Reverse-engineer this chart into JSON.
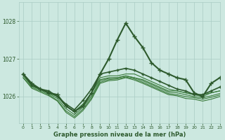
{
  "title": "Graphe pression niveau de la mer (hPa)",
  "bg_color": "#cce8e0",
  "grid_color": "#aaccC4",
  "line_color": "#2d5a2d",
  "xlim": [
    -0.5,
    23
  ],
  "ylim": [
    1025.3,
    1028.5
  ],
  "yticks": [
    1026,
    1027,
    1028
  ],
  "xticks": [
    0,
    1,
    2,
    3,
    4,
    5,
    6,
    7,
    8,
    9,
    10,
    11,
    12,
    13,
    14,
    15,
    16,
    17,
    18,
    19,
    20,
    21,
    22,
    23
  ],
  "figsize": [
    3.2,
    2.0
  ],
  "dpi": 100,
  "series": [
    {
      "x": [
        0,
        1,
        2,
        3,
        4,
        5,
        6,
        7,
        8,
        9,
        10,
        11,
        12,
        13,
        14,
        15,
        16,
        17,
        18,
        19,
        20,
        21,
        22,
        23
      ],
      "y": [
        1026.6,
        1026.35,
        1026.2,
        1026.1,
        1026.05,
        1025.75,
        1025.6,
        1025.75,
        1026.1,
        1026.6,
        1027.0,
        1027.5,
        1027.95,
        1027.6,
        1027.3,
        1026.9,
        1026.7,
        1026.6,
        1026.5,
        1026.45,
        1026.1,
        1026.0,
        1026.35,
        1026.5
      ],
      "color": "#2d5a2d",
      "lw": 1.5,
      "marker": "+",
      "ms": 4,
      "zorder": 5
    },
    {
      "x": [
        0,
        1,
        2,
        3,
        4,
        5,
        6,
        7,
        8,
        9,
        10,
        11,
        12,
        13,
        14,
        15,
        16,
        17,
        18,
        19,
        20,
        21,
        22,
        23
      ],
      "y": [
        1026.6,
        1026.3,
        1026.2,
        1026.15,
        1026.0,
        1025.8,
        1025.65,
        1025.9,
        1026.2,
        1026.6,
        1026.65,
        1026.7,
        1026.75,
        1026.7,
        1026.6,
        1026.5,
        1026.4,
        1026.3,
        1026.2,
        1026.15,
        1026.05,
        1026.05,
        1026.15,
        1026.25
      ],
      "color": "#2d5a2d",
      "lw": 1.2,
      "marker": "+",
      "ms": 3,
      "zorder": 4
    },
    {
      "x": [
        0,
        1,
        2,
        3,
        4,
        5,
        6,
        7,
        8,
        9,
        10,
        11,
        12,
        13,
        14,
        15,
        16,
        17,
        18,
        19,
        20,
        21,
        22,
        23
      ],
      "y": [
        1026.6,
        1026.3,
        1026.2,
        1026.1,
        1026.0,
        1025.75,
        1025.6,
        1025.8,
        1026.1,
        1026.45,
        1026.5,
        1026.5,
        1026.55,
        1026.5,
        1026.45,
        1026.35,
        1026.25,
        1026.15,
        1026.15,
        1026.1,
        1026.05,
        1026.0,
        1026.1,
        1026.15
      ],
      "color": "#3a7a3a",
      "lw": 0.8,
      "marker": null,
      "ms": 0,
      "zorder": 3
    },
    {
      "x": [
        0,
        1,
        2,
        3,
        4,
        5,
        6,
        7,
        8,
        9,
        10,
        11,
        12,
        13,
        14,
        15,
        16,
        17,
        18,
        19,
        20,
        21,
        22,
        23
      ],
      "y": [
        1026.6,
        1026.3,
        1026.2,
        1026.1,
        1026.0,
        1025.75,
        1025.6,
        1025.8,
        1026.1,
        1026.5,
        1026.55,
        1026.55,
        1026.6,
        1026.6,
        1026.5,
        1026.4,
        1026.3,
        1026.2,
        1026.15,
        1026.1,
        1026.05,
        1026.05,
        1026.1,
        1026.15
      ],
      "color": "#3a7a3a",
      "lw": 0.8,
      "marker": null,
      "ms": 0,
      "zorder": 3
    },
    {
      "x": [
        0,
        1,
        2,
        3,
        4,
        5,
        6,
        7,
        8,
        9,
        10,
        11,
        12,
        13,
        14,
        15,
        16,
        17,
        18,
        19,
        20,
        21,
        22,
        23
      ],
      "y": [
        1026.55,
        1026.28,
        1026.18,
        1026.08,
        1025.95,
        1025.68,
        1025.52,
        1025.72,
        1026.02,
        1026.42,
        1026.48,
        1026.5,
        1026.55,
        1026.5,
        1026.42,
        1026.32,
        1026.22,
        1026.12,
        1026.1,
        1026.05,
        1026.0,
        1025.97,
        1026.02,
        1026.08
      ],
      "color": "#3a7a3a",
      "lw": 0.8,
      "marker": null,
      "ms": 0,
      "zorder": 3
    },
    {
      "x": [
        0,
        1,
        2,
        3,
        4,
        5,
        6,
        7,
        8,
        9,
        10,
        11,
        12,
        13,
        14,
        15,
        16,
        17,
        18,
        19,
        20,
        21,
        22,
        23
      ],
      "y": [
        1026.5,
        1026.25,
        1026.15,
        1026.05,
        1025.9,
        1025.62,
        1025.47,
        1025.67,
        1025.97,
        1026.38,
        1026.45,
        1026.47,
        1026.52,
        1026.47,
        1026.38,
        1026.28,
        1026.18,
        1026.08,
        1026.05,
        1026.0,
        1025.97,
        1025.93,
        1025.98,
        1026.04
      ],
      "color": "#3a7a3a",
      "lw": 0.8,
      "marker": null,
      "ms": 0,
      "zorder": 3
    },
    {
      "x": [
        0,
        1,
        2,
        3,
        4,
        5,
        6,
        7,
        8,
        9,
        10,
        11,
        12,
        13,
        14,
        15,
        16,
        17,
        18,
        19,
        20,
        21,
        22,
        23
      ],
      "y": [
        1026.5,
        1026.22,
        1026.12,
        1026.02,
        1025.88,
        1025.58,
        1025.43,
        1025.63,
        1025.93,
        1026.35,
        1026.42,
        1026.44,
        1026.5,
        1026.44,
        1026.35,
        1026.25,
        1026.15,
        1026.05,
        1026.02,
        1025.95,
        1025.93,
        1025.88,
        1025.93,
        1026.0
      ],
      "color": "#3a7a3a",
      "lw": 0.8,
      "marker": null,
      "ms": 0,
      "zorder": 3
    }
  ]
}
